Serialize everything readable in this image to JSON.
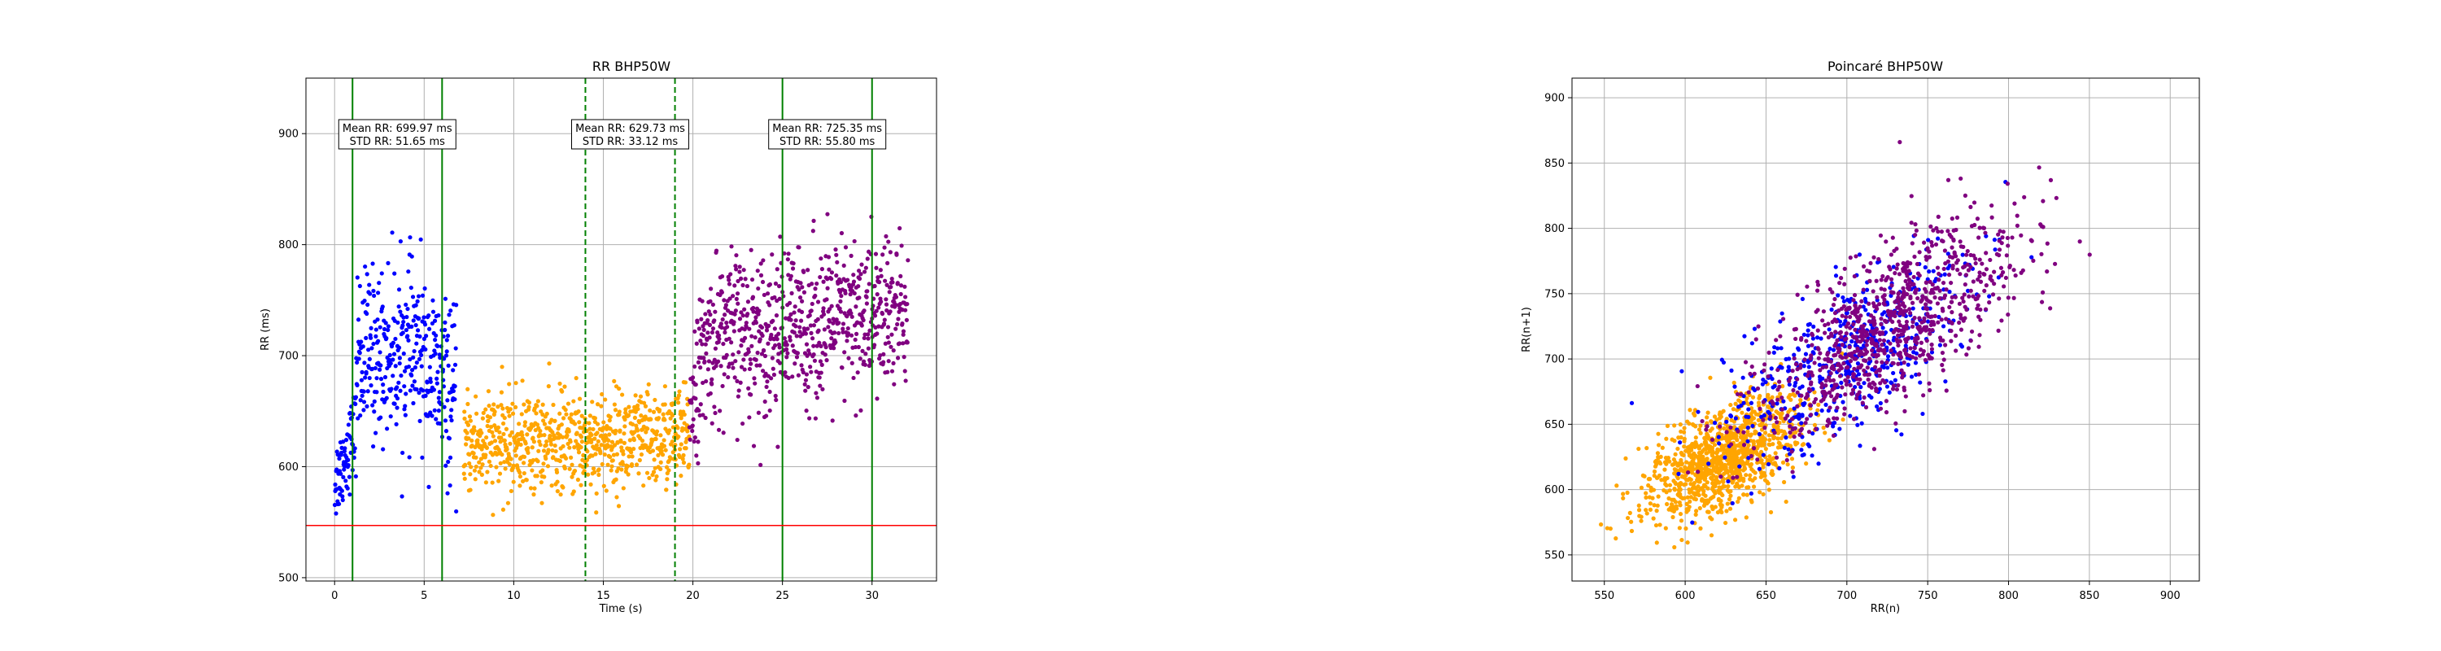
{
  "chart_data": [
    {
      "type": "scatter",
      "title": "RR BHP50W",
      "xlabel": "Time (s)",
      "ylabel": "RR (ms)",
      "xlim": [
        -1.6,
        33.6
      ],
      "ylim": [
        497,
        950
      ],
      "xticks": [
        0,
        5,
        10,
        15,
        20,
        25,
        30
      ],
      "yticks": [
        500,
        600,
        700,
        800,
        900
      ],
      "grid": true,
      "hline": {
        "y": 547,
        "color": "#ff0000"
      },
      "vlines": [
        {
          "x": 1,
          "style": "solid",
          "color": "#008000"
        },
        {
          "x": 6,
          "style": "solid",
          "color": "#008000"
        },
        {
          "x": 14,
          "style": "dashed",
          "color": "#008000"
        },
        {
          "x": 19,
          "style": "dashed",
          "color": "#008000"
        },
        {
          "x": 25,
          "style": "solid",
          "color": "#008000"
        },
        {
          "x": 30,
          "style": "solid",
          "color": "#008000"
        }
      ],
      "annotations": [
        {
          "x": 3.5,
          "line1": "Mean RR: 699.97 ms",
          "line2": "STD RR: 51.65 ms"
        },
        {
          "x": 16.5,
          "line1": "Mean RR: 629.73 ms",
          "line2": "STD RR: 33.12 ms"
        },
        {
          "x": 27.5,
          "line1": "Mean RR: 725.35 ms",
          "line2": "STD RR: 55.80 ms"
        }
      ],
      "series": [
        {
          "color": "#0000ff",
          "segments": [
            {
              "x0": 0.0,
              "x1": 1.2,
              "base0": 585,
              "base1": 635,
              "spread": 25
            },
            {
              "x0": 1.2,
              "x1": 4.6,
              "base0": 700,
              "base1": 705,
              "spread": 50
            },
            {
              "x0": 4.6,
              "x1": 6.8,
              "base0": 705,
              "base1": 655,
              "spread": 50
            }
          ]
        },
        {
          "color": "#ffa500",
          "segments": [
            {
              "x0": 7.2,
              "x1": 19.8,
              "base0": 620,
              "base1": 625,
              "spread": 30
            }
          ]
        },
        {
          "color": "#800080",
          "segments": [
            {
              "x0": 19.8,
              "x1": 21.0,
              "base0": 660,
              "base1": 715,
              "spread": 40
            },
            {
              "x0": 21.0,
              "x1": 32.0,
              "base0": 715,
              "base1": 740,
              "spread": 48
            }
          ]
        }
      ]
    },
    {
      "type": "scatter",
      "title": "Poincaré BHP50W",
      "xlabel": "RR(n)",
      "ylabel": "RR(n+1)",
      "xlim": [
        530,
        918
      ],
      "ylim": [
        530,
        915
      ],
      "xticks": [
        550,
        600,
        650,
        700,
        750,
        800,
        850,
        900
      ],
      "yticks": [
        550,
        600,
        650,
        700,
        750,
        800,
        850,
        900
      ],
      "grid": true,
      "series": [
        {
          "color": "#ffa500",
          "center": [
            625,
            625
          ],
          "sd_major": 30,
          "sd_minor": 15
        },
        {
          "color": "#0000ff",
          "center": [
            700,
            700
          ],
          "sd_major": 50,
          "sd_minor": 22
        },
        {
          "color": "#800080",
          "center": [
            725,
            725
          ],
          "sd_major": 55,
          "sd_minor": 22
        }
      ]
    }
  ]
}
